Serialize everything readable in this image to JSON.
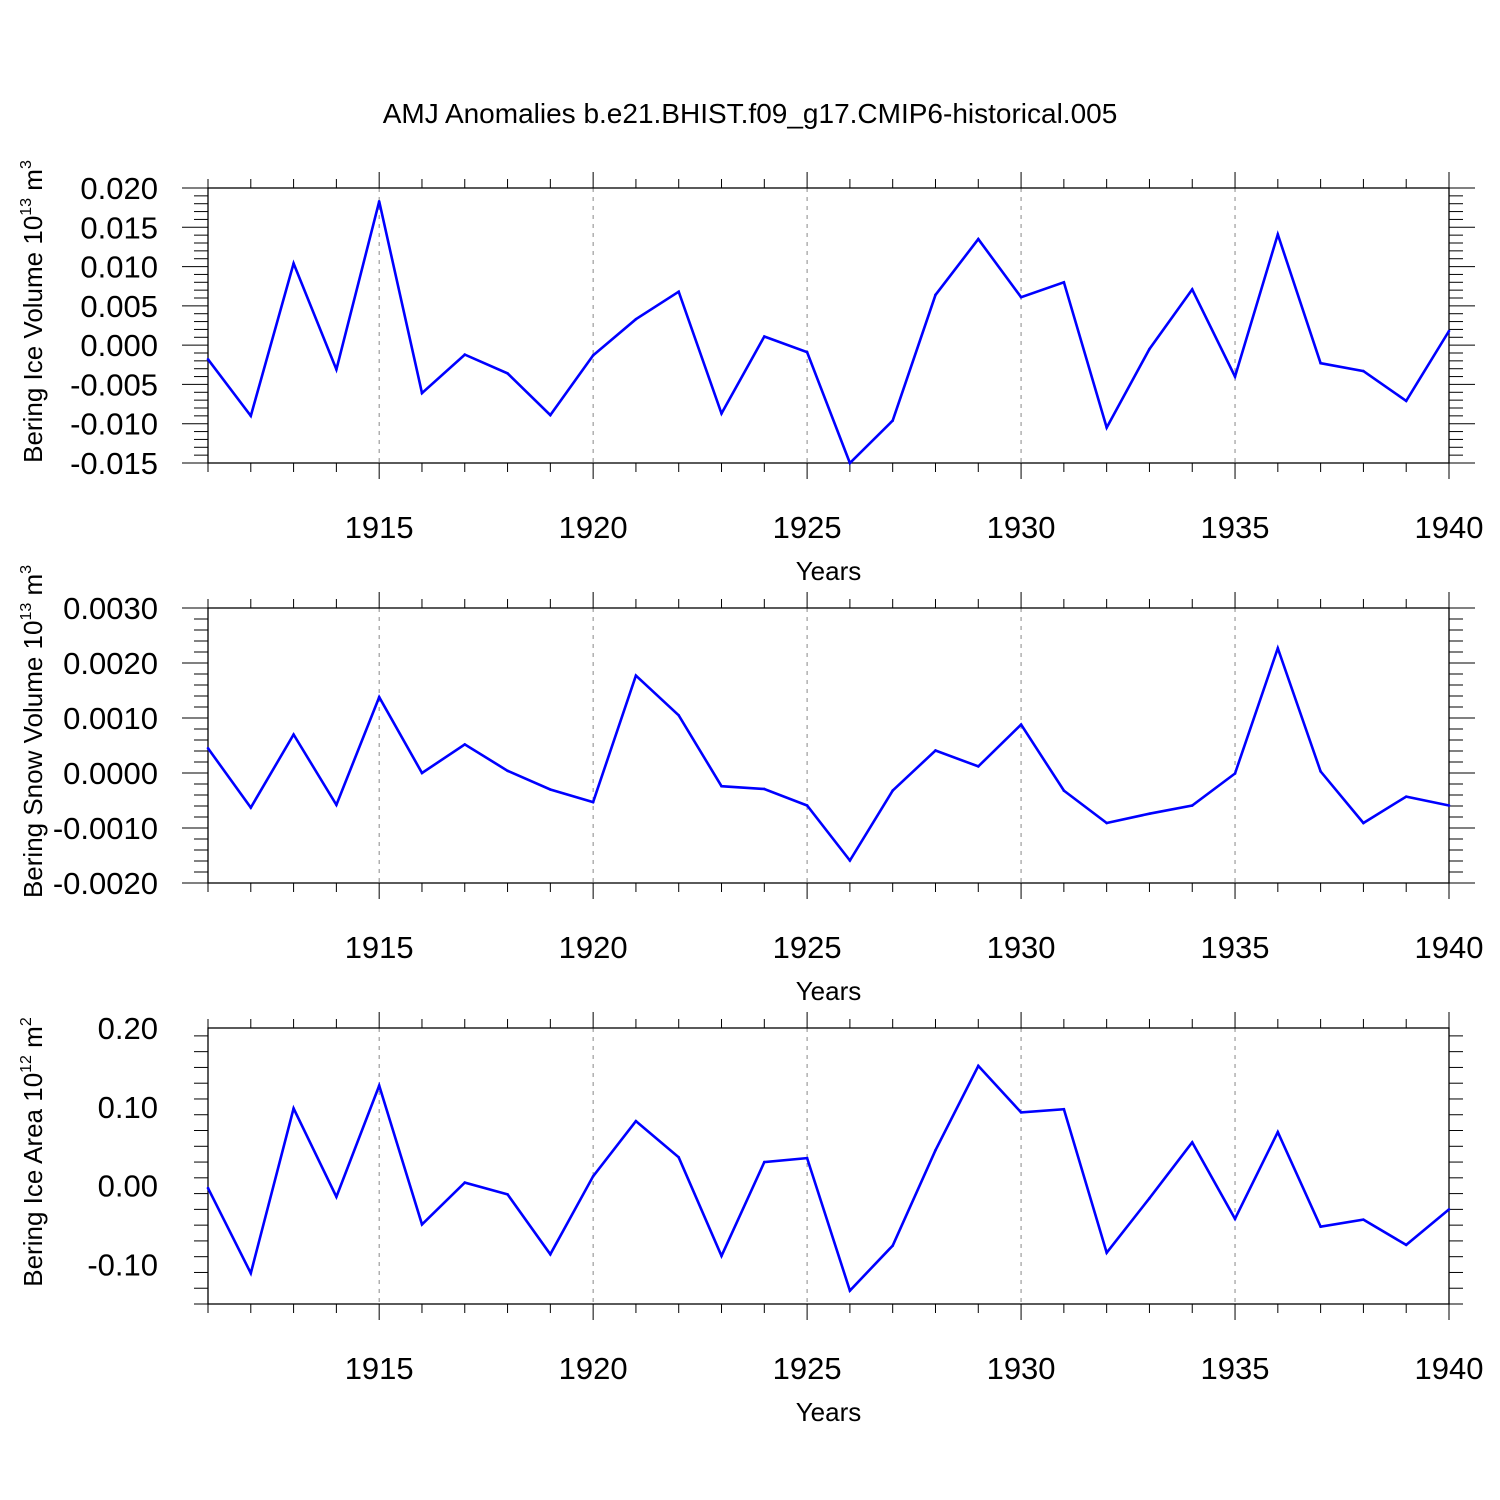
{
  "figure": {
    "title": "AMJ Anomalies b.e21.BHIST.f09_g17.CMIP6-historical.005"
  },
  "style": {
    "line_color": "#0000ff",
    "axis_color": "#000000",
    "grid_color": "#888888"
  },
  "chart_data": [
    {
      "type": "line",
      "ylabel_main": "Bering Ice Volume 10",
      "ylabel_exp": "13",
      "ylabel_unit": " m",
      "ylabel_unit_exp": "3",
      "xlabel": "Years",
      "xlim": [
        1911,
        1940
      ],
      "ylim": [
        -0.015,
        0.02
      ],
      "yticks": [
        -0.015,
        -0.01,
        -0.005,
        0.0,
        0.005,
        0.01,
        0.015,
        0.02
      ],
      "ytick_labels": [
        "-0.015",
        "-0.010",
        "-0.005",
        "0.000",
        "0.005",
        "0.010",
        "0.015",
        "0.020"
      ],
      "xticks": [
        1915,
        1920,
        1925,
        1930,
        1935,
        1940
      ],
      "xtick_labels": [
        "1915",
        "1920",
        "1925",
        "1930",
        "1935",
        "1940"
      ],
      "x": [
        1911,
        1912,
        1913,
        1914,
        1915,
        1916,
        1917,
        1918,
        1919,
        1920,
        1921,
        1922,
        1923,
        1924,
        1925,
        1926,
        1927,
        1928,
        1929,
        1930,
        1931,
        1932,
        1933,
        1934,
        1935,
        1936,
        1937,
        1938,
        1939,
        1940
      ],
      "values": [
        -0.0018,
        -0.009,
        0.0104,
        -0.0031,
        0.0183,
        -0.0061,
        -0.0012,
        -0.0036,
        -0.0089,
        -0.0013,
        0.0033,
        0.0068,
        -0.0087,
        0.0011,
        -0.0009,
        -0.015,
        -0.0096,
        0.0064,
        0.0135,
        0.0061,
        0.008,
        -0.0105,
        -0.0005,
        0.0071,
        -0.004,
        0.0141,
        -0.0023,
        -0.0033,
        -0.0071,
        0.0018
      ]
    },
    {
      "type": "line",
      "ylabel_main": "Bering Snow Volume 10",
      "ylabel_exp": "13",
      "ylabel_unit": " m",
      "ylabel_unit_exp": "3",
      "xlabel": "Years",
      "xlim": [
        1911,
        1940
      ],
      "ylim": [
        -0.002,
        0.003
      ],
      "yticks": [
        -0.002,
        -0.001,
        0.0,
        0.001,
        0.002,
        0.003
      ],
      "ytick_labels": [
        "-0.0020",
        "-0.0010",
        "0.0000",
        "0.0010",
        "0.0020",
        "0.0030"
      ],
      "xticks": [
        1915,
        1920,
        1925,
        1930,
        1935,
        1940
      ],
      "xtick_labels": [
        "1915",
        "1920",
        "1925",
        "1930",
        "1935",
        "1940"
      ],
      "x": [
        1911,
        1912,
        1913,
        1914,
        1915,
        1916,
        1917,
        1918,
        1919,
        1920,
        1921,
        1922,
        1923,
        1924,
        1925,
        1926,
        1927,
        1928,
        1929,
        1930,
        1931,
        1932,
        1933,
        1934,
        1935,
        1936,
        1937,
        1938,
        1939,
        1940
      ],
      "values": [
        0.00045,
        -0.00063,
        0.0007,
        -0.00058,
        0.00138,
        0.0,
        0.00052,
        4e-05,
        -0.0003,
        -0.00053,
        0.00177,
        0.00105,
        -0.00024,
        -0.00029,
        -0.00059,
        -0.00159,
        -0.00032,
        0.00041,
        0.00012,
        0.00088,
        -0.00032,
        -0.00091,
        -0.00074,
        -0.00059,
        -1e-05,
        0.00227,
        3e-05,
        -0.00091,
        -0.00043,
        -0.00059
      ]
    },
    {
      "type": "line",
      "ylabel_main": "Bering Ice Area 10",
      "ylabel_exp": "12",
      "ylabel_unit": " m",
      "ylabel_unit_exp": "2",
      "xlabel": "Years",
      "xlim": [
        1911,
        1940
      ],
      "ylim": [
        -0.15,
        0.2
      ],
      "yticks": [
        -0.1,
        0.0,
        0.1,
        0.2
      ],
      "ytick_labels": [
        "-0.10",
        "0.00",
        "0.10",
        "0.20"
      ],
      "xticks": [
        1915,
        1920,
        1925,
        1930,
        1935,
        1940
      ],
      "xtick_labels": [
        "1915",
        "1920",
        "1925",
        "1930",
        "1935",
        "1940"
      ],
      "x": [
        1911,
        1912,
        1913,
        1914,
        1915,
        1916,
        1917,
        1918,
        1919,
        1920,
        1921,
        1922,
        1923,
        1924,
        1925,
        1926,
        1927,
        1928,
        1929,
        1930,
        1931,
        1932,
        1933,
        1934,
        1935,
        1936,
        1937,
        1938,
        1939,
        1940
      ],
      "values": [
        -0.003,
        -0.111,
        0.098,
        -0.014,
        0.127,
        -0.049,
        0.004,
        -0.011,
        -0.087,
        0.012,
        0.082,
        0.036,
        -0.089,
        0.03,
        0.035,
        -0.133,
        -0.076,
        0.045,
        0.152,
        0.093,
        0.097,
        -0.085,
        -0.016,
        0.055,
        -0.042,
        0.068,
        -0.052,
        -0.043,
        -0.075,
        -0.03
      ]
    }
  ]
}
